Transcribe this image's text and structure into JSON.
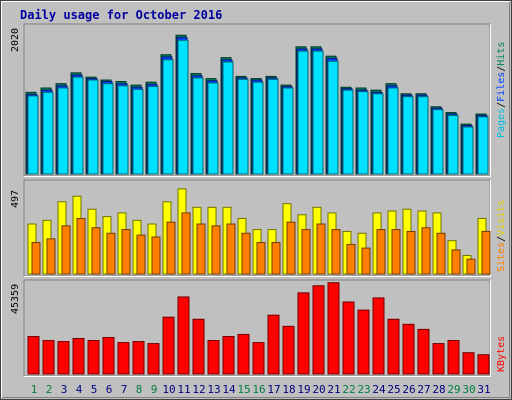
{
  "colors": {
    "background": "#c0c0c0",
    "hits": "#00805c",
    "files": "#0040ff",
    "pages": "#00e0ff",
    "visits": "#ffff00",
    "sites": "#ff8000",
    "kbytes": "#ff0000",
    "title": "#0000a0",
    "weekend_label": "#008040",
    "weekday_label": "#000080"
  },
  "chart_data": [
    {
      "type": "bar",
      "title": "Daily usage for October 2016",
      "categories": [
        "1",
        "2",
        "3",
        "4",
        "5",
        "6",
        "7",
        "8",
        "9",
        "10",
        "11",
        "12",
        "13",
        "14",
        "15",
        "16",
        "17",
        "18",
        "19",
        "20",
        "21",
        "22",
        "23",
        "24",
        "25",
        "26",
        "27",
        "28",
        "29",
        "30",
        "31"
      ],
      "weekend_days": [
        "1",
        "2",
        "8",
        "9",
        "15",
        "16",
        "22",
        "23",
        "29",
        "30"
      ],
      "ymax_label": "2020",
      "ylim": [
        0,
        2020
      ],
      "legend": [
        "Pages",
        "Files",
        "Hits"
      ],
      "series": [
        {
          "name": "Hits",
          "values": [
            1130,
            1190,
            1250,
            1400,
            1340,
            1300,
            1280,
            1230,
            1270,
            1650,
            1920,
            1390,
            1320,
            1610,
            1350,
            1320,
            1350,
            1230,
            1760,
            1760,
            1630,
            1200,
            1190,
            1160,
            1250,
            1110,
            1110,
            930,
            850,
            690,
            830
          ]
        },
        {
          "name": "Files",
          "values": [
            1100,
            1160,
            1220,
            1370,
            1320,
            1280,
            1250,
            1200,
            1240,
            1620,
            1890,
            1360,
            1290,
            1580,
            1330,
            1300,
            1330,
            1210,
            1730,
            1730,
            1600,
            1180,
            1160,
            1130,
            1220,
            1090,
            1090,
            910,
            830,
            670,
            810
          ]
        },
        {
          "name": "Pages",
          "values": [
            1080,
            1130,
            1190,
            1340,
            1300,
            1250,
            1220,
            1170,
            1210,
            1580,
            1850,
            1330,
            1260,
            1550,
            1310,
            1270,
            1310,
            1190,
            1700,
            1700,
            1560,
            1160,
            1140,
            1110,
            1190,
            1070,
            1070,
            890,
            810,
            650,
            790
          ]
        }
      ]
    },
    {
      "type": "bar",
      "ymax_label": "497",
      "ylim": [
        0,
        497
      ],
      "legend": [
        "Sites",
        "Visits"
      ],
      "series": [
        {
          "name": "Visits",
          "values": [
            270,
            290,
            390,
            420,
            350,
            310,
            330,
            290,
            270,
            390,
            460,
            360,
            360,
            360,
            300,
            240,
            240,
            380,
            320,
            360,
            330,
            230,
            220,
            330,
            340,
            350,
            340,
            330,
            180,
            100,
            300
          ]
        },
        {
          "name": "Sites",
          "values": [
            170,
            190,
            260,
            300,
            250,
            220,
            240,
            210,
            200,
            280,
            330,
            270,
            260,
            270,
            220,
            170,
            170,
            280,
            240,
            270,
            240,
            160,
            140,
            240,
            240,
            230,
            250,
            220,
            130,
            80,
            230
          ]
        }
      ]
    },
    {
      "type": "bar",
      "ymax_label": "45359",
      "ylim": [
        0,
        45359
      ],
      "legend": [
        "KBytes"
      ],
      "series": [
        {
          "name": "KBytes",
          "values": [
            18500,
            16500,
            16000,
            17500,
            16500,
            18000,
            15500,
            16000,
            15000,
            28000,
            38000,
            27000,
            16500,
            18500,
            19500,
            15500,
            29000,
            23500,
            40000,
            43500,
            45000,
            35500,
            31500,
            37500,
            27000,
            24500,
            22000,
            15000,
            16500,
            10500,
            9500
          ]
        }
      ]
    }
  ]
}
